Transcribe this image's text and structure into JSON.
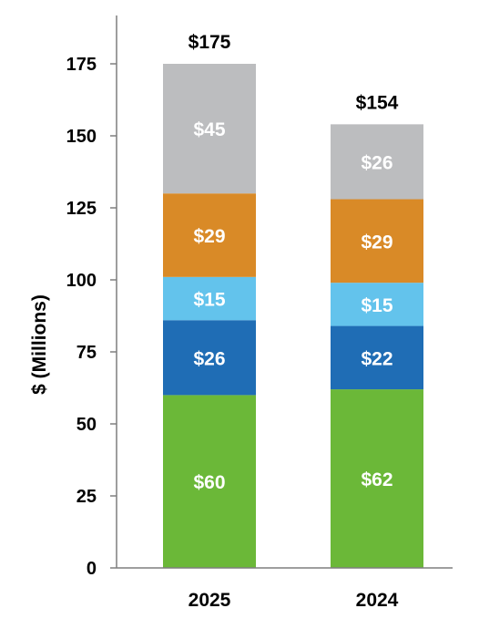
{
  "chart_data": {
    "type": "bar",
    "stacked": true,
    "categories": [
      "2025",
      "2024"
    ],
    "series": [
      {
        "color": "#6bb838",
        "values": [
          60,
          62
        ],
        "labels": [
          "$60",
          "$62"
        ]
      },
      {
        "color": "#1f6db5",
        "values": [
          26,
          22
        ],
        "labels": [
          "$26",
          "$22"
        ]
      },
      {
        "color": "#63c3ec",
        "values": [
          15,
          15
        ],
        "labels": [
          "$15",
          "$15"
        ]
      },
      {
        "color": "#d98a27",
        "values": [
          29,
          29
        ],
        "labels": [
          "$29",
          "$29"
        ]
      },
      {
        "color": "#bcbdbf",
        "values": [
          45,
          26
        ],
        "labels": [
          "$45",
          "$26"
        ]
      }
    ],
    "totals": [
      175,
      154
    ],
    "total_labels": [
      "$175",
      "$154"
    ],
    "ylabel": "$ (Millions)",
    "ylim": [
      0,
      175
    ],
    "yticks": [
      0,
      25,
      50,
      75,
      100,
      125,
      150,
      175
    ],
    "grid": false,
    "legend": "none"
  }
}
